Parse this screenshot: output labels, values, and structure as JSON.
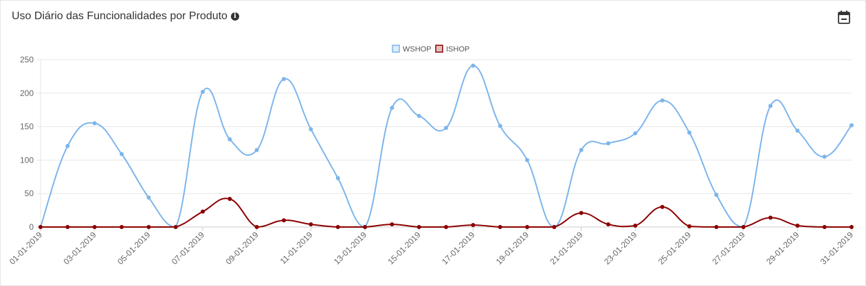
{
  "header": {
    "title": "Uso Diário das Funcionalidades por Produto",
    "info_icon": "info-circle-icon",
    "calendar_icon": "calendar-minus-icon"
  },
  "chart_data": {
    "type": "line",
    "x": [
      "01-01-2019",
      "02-01-2019",
      "03-01-2019",
      "04-01-2019",
      "05-01-2019",
      "06-01-2019",
      "07-01-2019",
      "08-01-2019",
      "09-01-2019",
      "10-01-2019",
      "11-01-2019",
      "12-01-2019",
      "13-01-2019",
      "14-01-2019",
      "15-01-2019",
      "16-01-2019",
      "17-01-2019",
      "18-01-2019",
      "19-01-2019",
      "20-01-2019",
      "21-01-2019",
      "22-01-2019",
      "23-01-2019",
      "24-01-2019",
      "25-01-2019",
      "26-01-2019",
      "27-01-2019",
      "28-01-2019",
      "29-01-2019",
      "30-01-2019",
      "31-01-2019"
    ],
    "x_tick_labels": [
      "01-01-2019",
      "03-01-2019",
      "05-01-2019",
      "07-01-2019",
      "09-01-2019",
      "11-01-2019",
      "13-01-2019",
      "15-01-2019",
      "17-01-2019",
      "19-01-2019",
      "21-01-2019",
      "23-01-2019",
      "25-01-2019",
      "27-01-2019",
      "29-01-2019",
      "31-01-2019"
    ],
    "y_ticks": [
      0,
      50,
      100,
      150,
      200,
      250
    ],
    "ylim": [
      0,
      250
    ],
    "grid": true,
    "legend_position": "top-center",
    "series": [
      {
        "name": "WSHOP",
        "color": "#7cb5ec",
        "values": [
          0,
          121,
          155,
          109,
          44,
          0,
          202,
          131,
          115,
          221,
          146,
          73,
          0,
          178,
          166,
          148,
          241,
          151,
          100,
          0,
          115,
          125,
          140,
          189,
          141,
          48,
          0,
          181,
          144,
          105,
          152
        ]
      },
      {
        "name": "ISHOP",
        "color": "#8b0000",
        "values": [
          0,
          0,
          0,
          0,
          0,
          0,
          23,
          42,
          0,
          10,
          4,
          0,
          0,
          4,
          0,
          0,
          3,
          0,
          0,
          0,
          21,
          4,
          2,
          30,
          1,
          0,
          0,
          14,
          2,
          0,
          0
        ]
      }
    ]
  }
}
